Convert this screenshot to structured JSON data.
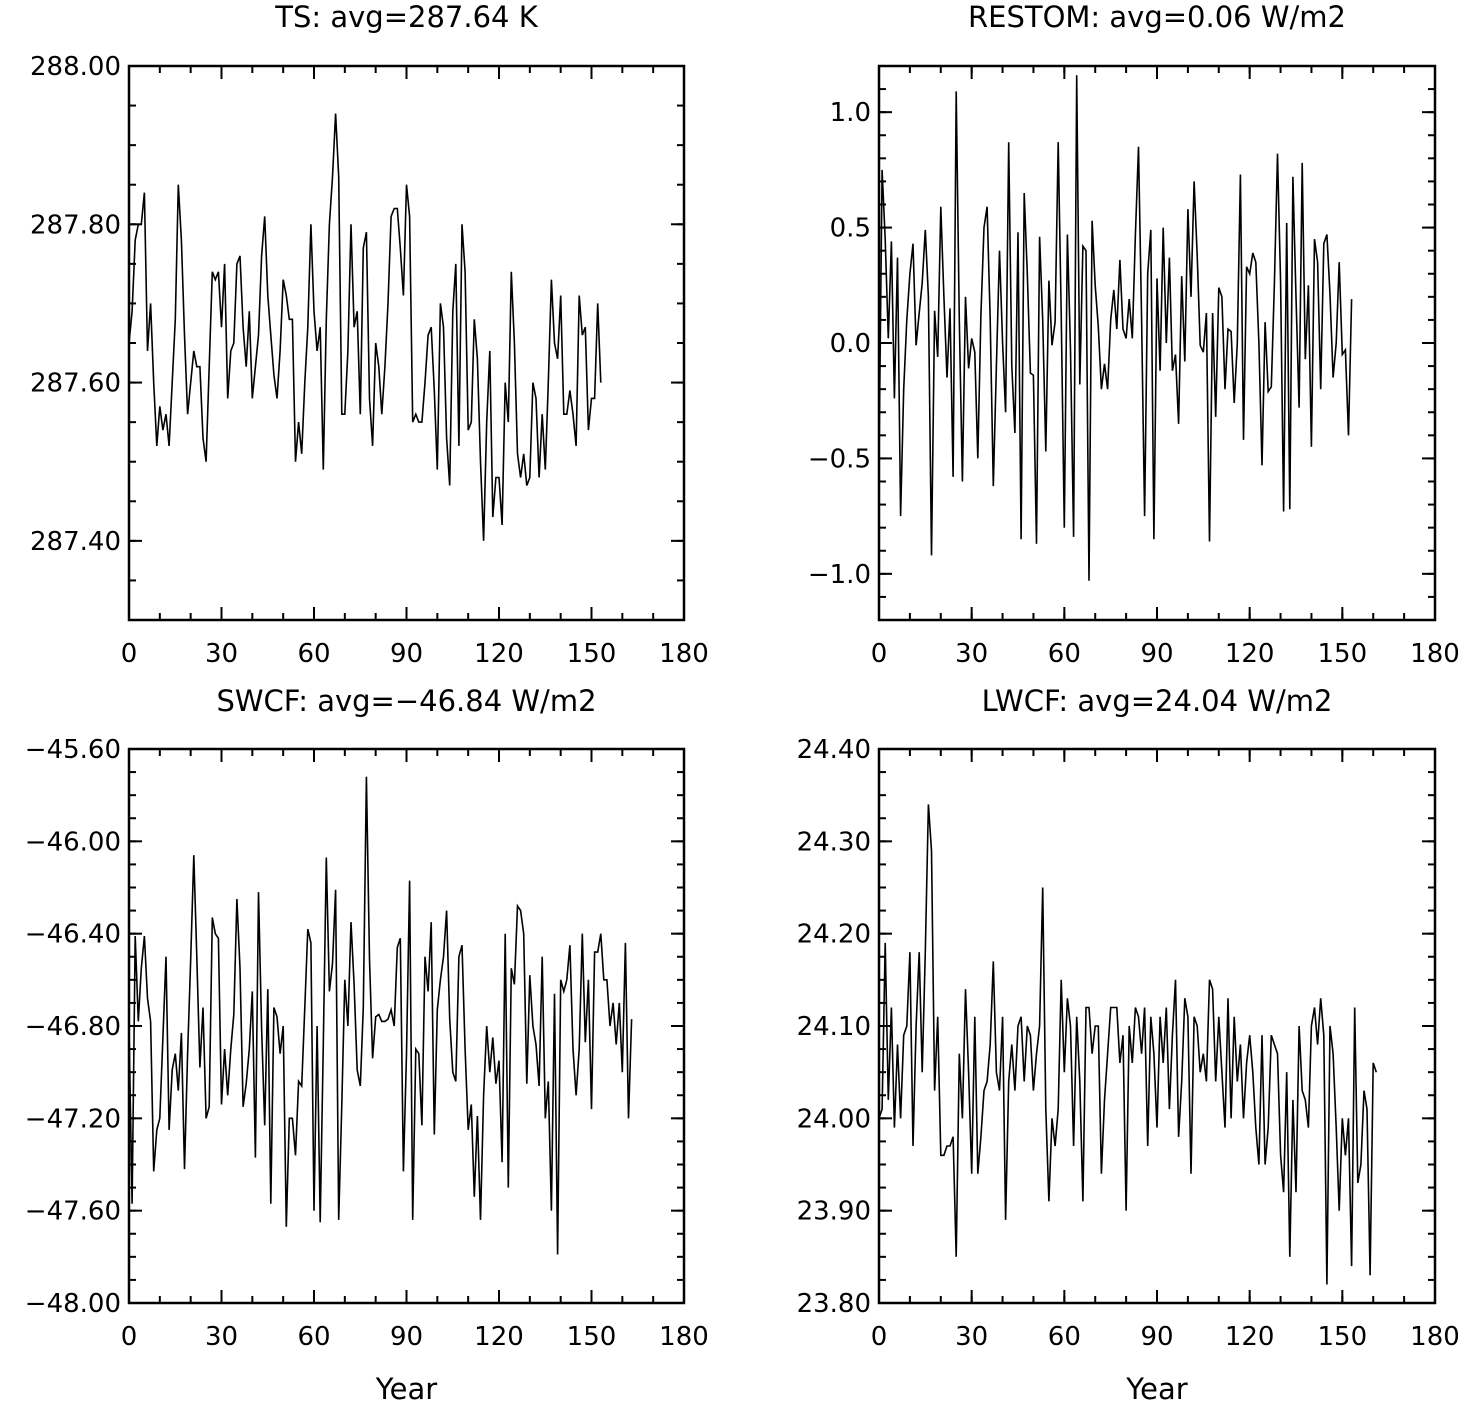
{
  "chart_data": [
    {
      "type": "line",
      "title": "TS: avg=287.64 K",
      "xlabel": "",
      "ylabel": "",
      "xlim": [
        0,
        180
      ],
      "ylim": [
        287.3,
        288.0
      ],
      "x_ticks": [
        0,
        30,
        60,
        90,
        120,
        150,
        180
      ],
      "x_tick_labels": [
        "0",
        "30",
        "60",
        "90",
        "120",
        "150",
        "180"
      ],
      "y_ticks": [
        287.4,
        287.6,
        287.8,
        288.0
      ],
      "y_tick_labels": [
        "287.40",
        "287.60",
        "287.80",
        "288.00"
      ],
      "y_minor_step": 0.05,
      "x_minor_step": 10,
      "grid": false,
      "series": [
        {
          "color": "#000000",
          "x_start": 0,
          "x_step": 1,
          "values": [
            287.65,
            287.69,
            287.78,
            287.8,
            287.8,
            287.84,
            287.64,
            287.7,
            287.6,
            287.52,
            287.57,
            287.54,
            287.56,
            287.52,
            287.6,
            287.68,
            287.85,
            287.78,
            287.66,
            287.56,
            287.6,
            287.64,
            287.62,
            287.62,
            287.53,
            287.5,
            287.62,
            287.74,
            287.73,
            287.74,
            287.67,
            287.75,
            287.58,
            287.64,
            287.65,
            287.75,
            287.76,
            287.67,
            287.62,
            287.69,
            287.58,
            287.62,
            287.66,
            287.76,
            287.81,
            287.71,
            287.66,
            287.61,
            287.58,
            287.64,
            287.73,
            287.71,
            287.68,
            287.68,
            287.5,
            287.55,
            287.51,
            287.6,
            287.67,
            287.8,
            287.69,
            287.64,
            287.67,
            287.49,
            287.68,
            287.8,
            287.86,
            287.94,
            287.86,
            287.56,
            287.56,
            287.64,
            287.8,
            287.67,
            287.69,
            287.56,
            287.77,
            287.79,
            287.58,
            287.52,
            287.65,
            287.62,
            287.56,
            287.62,
            287.7,
            287.81,
            287.82,
            287.82,
            287.77,
            287.71,
            287.85,
            287.81,
            287.55,
            287.56,
            287.55,
            287.55,
            287.6,
            287.66,
            287.67,
            287.59,
            287.49,
            287.7,
            287.67,
            287.53,
            287.47,
            287.69,
            287.75,
            287.52,
            287.8,
            287.74,
            287.54,
            287.55,
            287.68,
            287.63,
            287.5,
            287.4,
            287.55,
            287.64,
            287.43,
            287.48,
            287.48,
            287.42,
            287.6,
            287.55,
            287.74,
            287.65,
            287.51,
            287.48,
            287.51,
            287.47,
            287.48,
            287.6,
            287.58,
            287.48,
            287.56,
            287.49,
            287.6,
            287.73,
            287.65,
            287.63,
            287.71,
            287.56,
            287.56,
            287.59,
            287.56,
            287.52,
            287.71,
            287.66,
            287.67,
            287.54,
            287.58,
            287.58,
            287.7,
            287.6
          ]
        }
      ]
    },
    {
      "type": "line",
      "title": "RESTOM: avg=0.06 W/m2",
      "xlabel": "",
      "ylabel": "",
      "xlim": [
        0,
        180
      ],
      "ylim": [
        -1.2,
        1.2
      ],
      "x_ticks": [
        0,
        30,
        60,
        90,
        120,
        150,
        180
      ],
      "x_tick_labels": [
        "0",
        "30",
        "60",
        "90",
        "120",
        "150",
        "180"
      ],
      "y_ticks": [
        -1.0,
        -0.5,
        0.0,
        0.5,
        1.0
      ],
      "y_tick_labels": [
        "−1.0",
        "−0.5",
        "0.0",
        "0.5",
        "1.0"
      ],
      "y_minor_step": 0.1,
      "x_minor_step": 10,
      "grid": false,
      "series": [
        {
          "color": "#000000",
          "x_start": 0,
          "x_step": 1,
          "values": [
            -0.52,
            0.75,
            0.45,
            0.02,
            0.44,
            -0.24,
            0.37,
            -0.75,
            -0.2,
            0.1,
            0.3,
            0.43,
            -0.01,
            0.13,
            0.26,
            0.49,
            0.2,
            -0.92,
            0.14,
            -0.06,
            0.59,
            0.2,
            -0.15,
            0.15,
            -0.58,
            1.09,
            0.1,
            -0.6,
            0.2,
            -0.11,
            0.02,
            -0.04,
            -0.5,
            0.12,
            0.5,
            0.59,
            0.1,
            -0.62,
            -0.1,
            0.4,
            0.0,
            -0.3,
            0.87,
            -0.1,
            -0.39,
            0.48,
            -0.85,
            0.65,
            0.3,
            -0.13,
            -0.14,
            -0.87,
            0.46,
            0.1,
            -0.47,
            0.27,
            -0.01,
            0.09,
            0.87,
            0.13,
            -0.8,
            0.47,
            -0.03,
            -0.84,
            1.16,
            -0.18,
            0.42,
            0.4,
            -1.03,
            0.53,
            0.25,
            0.07,
            -0.2,
            -0.09,
            -0.2,
            0.1,
            0.23,
            0.06,
            0.36,
            0.06,
            0.02,
            0.19,
            0.02,
            0.47,
            0.85,
            0.1,
            -0.75,
            0.3,
            0.49,
            -0.85,
            0.28,
            -0.12,
            0.5,
            0.0,
            0.37,
            -0.12,
            -0.05,
            -0.35,
            0.29,
            -0.08,
            0.58,
            0.2,
            0.7,
            0.38,
            -0.01,
            -0.04,
            0.13,
            -0.86,
            0.13,
            -0.32,
            0.24,
            0.2,
            -0.2,
            0.06,
            0.05,
            -0.26,
            0.0,
            0.73,
            -0.42,
            0.33,
            0.3,
            0.39,
            0.35,
            0.0,
            -0.53,
            0.09,
            -0.21,
            -0.19,
            0.26,
            0.82,
            0.26,
            -0.73,
            0.52,
            -0.72,
            0.72,
            0.2,
            -0.28,
            0.78,
            -0.07,
            0.25,
            -0.45,
            0.45,
            0.35,
            -0.2,
            0.43,
            0.47,
            0.21,
            -0.15,
            0.0,
            0.35,
            -0.05,
            -0.03,
            -0.4,
            0.19
          ]
        }
      ]
    },
    {
      "type": "line",
      "title": "SWCF: avg=−46.84 W/m2",
      "xlabel": "Year",
      "ylabel": "",
      "xlim": [
        0,
        180
      ],
      "ylim": [
        -48.0,
        -45.6
      ],
      "x_ticks": [
        0,
        30,
        60,
        90,
        120,
        150,
        180
      ],
      "x_tick_labels": [
        "0",
        "30",
        "60",
        "90",
        "120",
        "150",
        "180"
      ],
      "y_ticks": [
        -48.0,
        -47.6,
        -47.2,
        -46.8,
        -46.4,
        -46.0,
        -45.6
      ],
      "y_tick_labels": [
        "−48.00",
        "−47.60",
        "−47.20",
        "−46.80",
        "−46.40",
        "−46.00",
        "−45.60"
      ],
      "y_minor_step": 0.1,
      "x_minor_step": 10,
      "grid": false,
      "series": [
        {
          "color": "#000000",
          "x_start": 0,
          "x_step": 1,
          "values": [
            -46.8,
            -47.57,
            -46.41,
            -46.78,
            -46.55,
            -46.41,
            -46.68,
            -46.78,
            -47.43,
            -47.25,
            -47.2,
            -46.85,
            -46.5,
            -47.25,
            -46.99,
            -46.92,
            -47.08,
            -46.83,
            -47.42,
            -46.92,
            -46.51,
            -46.06,
            -46.5,
            -46.98,
            -46.72,
            -47.2,
            -47.15,
            -46.33,
            -46.4,
            -46.42,
            -47.14,
            -46.9,
            -47.1,
            -46.9,
            -46.75,
            -46.25,
            -46.55,
            -47.15,
            -47.05,
            -46.9,
            -46.65,
            -47.37,
            -46.22,
            -46.81,
            -47.23,
            -46.64,
            -47.57,
            -46.72,
            -46.76,
            -46.92,
            -46.8,
            -47.67,
            -47.2,
            -47.2,
            -47.36,
            -47.04,
            -47.06,
            -46.72,
            -46.38,
            -46.44,
            -47.6,
            -46.8,
            -47.65,
            -46.88,
            -46.07,
            -46.65,
            -46.53,
            -46.21,
            -47.64,
            -47.14,
            -46.6,
            -46.8,
            -46.35,
            -46.62,
            -46.99,
            -47.06,
            -46.72,
            -45.72,
            -46.51,
            -46.94,
            -46.76,
            -46.75,
            -46.78,
            -46.78,
            -46.77,
            -46.73,
            -46.8,
            -46.46,
            -46.42,
            -47.43,
            -46.92,
            -46.17,
            -47.64,
            -46.9,
            -46.92,
            -47.23,
            -46.5,
            -46.65,
            -46.35,
            -47.27,
            -46.73,
            -46.6,
            -46.5,
            -46.3,
            -46.77,
            -47.0,
            -47.04,
            -46.5,
            -46.45,
            -46.9,
            -47.25,
            -47.14,
            -47.54,
            -47.19,
            -47.64,
            -47.1,
            -46.8,
            -47.0,
            -46.85,
            -47.05,
            -46.95,
            -47.39,
            -46.4,
            -47.5,
            -46.55,
            -46.62,
            -46.28,
            -46.3,
            -46.4,
            -47.05,
            -46.58,
            -46.8,
            -46.88,
            -47.06,
            -46.5,
            -47.2,
            -47.04,
            -47.6,
            -46.66,
            -47.79,
            -46.6,
            -46.65,
            -46.6,
            -46.45,
            -46.9,
            -47.1,
            -46.9,
            -46.4,
            -46.87,
            -46.6,
            -47.16,
            -46.48,
            -46.48,
            -46.4,
            -46.6,
            -46.6,
            -46.8,
            -46.7,
            -46.88,
            -46.7,
            -47.0,
            -46.44,
            -47.2,
            -46.77
          ]
        }
      ]
    },
    {
      "type": "line",
      "title": "LWCF: avg=24.04 W/m2",
      "xlabel": "Year",
      "ylabel": "",
      "xlim": [
        0,
        180
      ],
      "ylim": [
        23.8,
        24.4
      ],
      "x_ticks": [
        0,
        30,
        60,
        90,
        120,
        150,
        180
      ],
      "x_tick_labels": [
        "0",
        "30",
        "60",
        "90",
        "120",
        "150",
        "180"
      ],
      "y_ticks": [
        23.8,
        23.9,
        24.0,
        24.1,
        24.2,
        24.3,
        24.4
      ],
      "y_tick_labels": [
        "23.80",
        "23.90",
        "24.00",
        "24.10",
        "24.20",
        "24.30",
        "24.40"
      ],
      "y_minor_step": 0.025,
      "x_minor_step": 10,
      "grid": false,
      "series": [
        {
          "color": "#000000",
          "x_start": 0,
          "x_step": 1,
          "values": [
            24.0,
            24.01,
            24.19,
            24.02,
            24.12,
            23.99,
            24.08,
            24.0,
            24.09,
            24.1,
            24.18,
            23.97,
            24.1,
            24.18,
            24.05,
            24.18,
            24.34,
            24.29,
            24.03,
            24.11,
            23.96,
            23.96,
            23.97,
            23.97,
            23.98,
            23.85,
            24.07,
            24.0,
            24.14,
            24.05,
            23.94,
            24.11,
            23.94,
            23.98,
            24.03,
            24.04,
            24.08,
            24.17,
            24.05,
            24.03,
            24.11,
            23.89,
            24.04,
            24.08,
            24.03,
            24.1,
            24.11,
            24.04,
            24.1,
            24.09,
            24.03,
            24.07,
            24.1,
            24.25,
            24.01,
            23.91,
            24.0,
            23.97,
            24.01,
            24.15,
            24.05,
            24.13,
            24.1,
            23.97,
            24.11,
            24.04,
            23.91,
            24.12,
            24.12,
            24.07,
            24.1,
            24.1,
            23.94,
            24.02,
            24.07,
            24.12,
            24.12,
            24.12,
            24.06,
            24.09,
            23.9,
            24.1,
            24.06,
            24.12,
            24.11,
            24.07,
            24.12,
            23.97,
            24.11,
            24.07,
            23.99,
            24.11,
            24.06,
            24.12,
            24.01,
            24.09,
            24.15,
            23.98,
            24.04,
            24.13,
            24.11,
            23.94,
            24.11,
            24.1,
            24.05,
            24.07,
            24.04,
            24.15,
            24.14,
            24.04,
            24.11,
            24.05,
            23.99,
            24.13,
            24.0,
            24.11,
            24.04,
            24.08,
            24.0,
            24.06,
            24.09,
            24.05,
            23.99,
            23.95,
            24.09,
            23.95,
            23.99,
            24.09,
            24.08,
            24.07,
            23.96,
            23.92,
            24.05,
            23.85,
            24.02,
            23.92,
            24.1,
            24.03,
            24.02,
            23.99,
            24.1,
            24.12,
            24.08,
            24.13,
            24.09,
            23.82,
            24.1,
            24.07,
            23.99,
            23.9,
            24.0,
            23.96,
            24.0,
            23.84,
            24.12,
            23.93,
            23.95,
            24.03,
            24.01,
            23.83,
            24.06,
            24.05
          ]
        }
      ]
    }
  ]
}
